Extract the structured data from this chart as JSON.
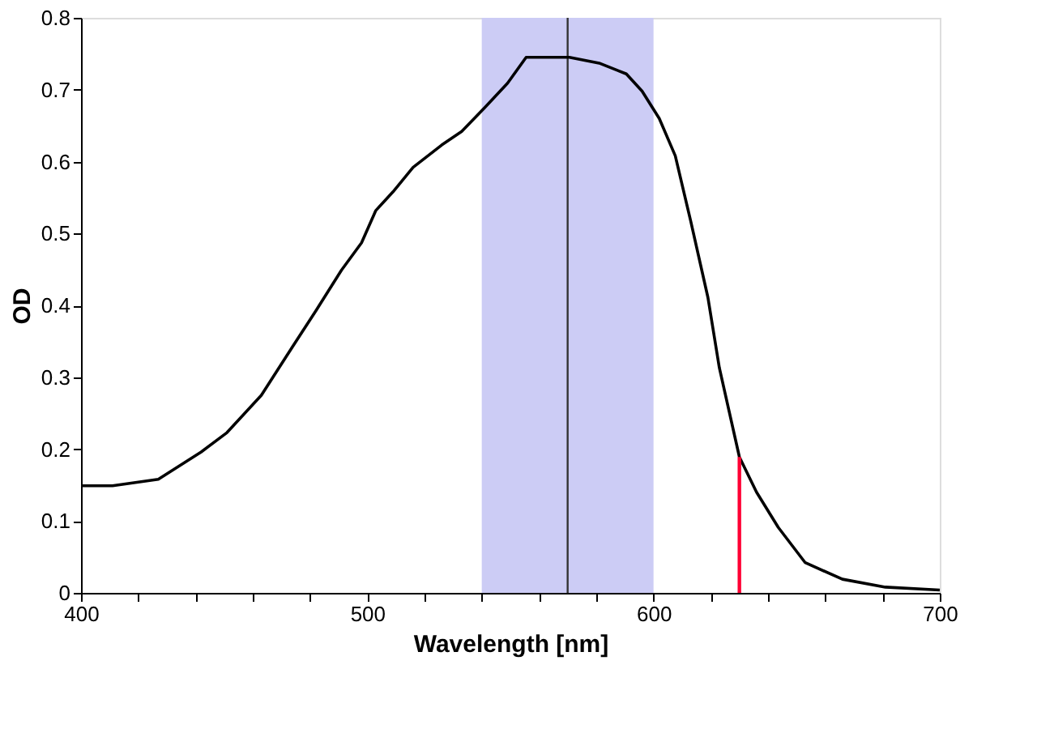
{
  "chart_data": {
    "type": "line",
    "xlabel": "Wavelength [nm]",
    "ylabel": "OD",
    "xlim": [
      400,
      700
    ],
    "ylim": [
      0,
      0.8
    ],
    "xticks": [
      400,
      {
        "value": 420,
        "label": null
      },
      {
        "value": 440,
        "label": null
      },
      {
        "value": 460,
        "label": null
      },
      {
        "value": 480,
        "label": null
      },
      500,
      {
        "value": 520,
        "label": null
      },
      {
        "value": 540,
        "label": null
      },
      {
        "value": 560,
        "label": null
      },
      {
        "value": 580,
        "label": null
      },
      600,
      {
        "value": 620,
        "label": null
      },
      {
        "value": 640,
        "label": null
      },
      {
        "value": 660,
        "label": null
      },
      {
        "value": 680,
        "label": null
      },
      700
    ],
    "yticks": [
      0,
      0.1,
      0.2,
      0.3,
      0.4,
      0.5,
      0.6,
      0.7,
      0.8
    ],
    "grid": false,
    "line_style": "solid",
    "marker": "none",
    "series": [
      {
        "color": "#000000",
        "x": [
          400,
          411,
          427,
          442,
          451,
          463,
          474,
          482,
          491,
          498,
          503,
          509,
          516,
          526,
          533,
          541,
          549,
          555.5,
          570.6,
          581,
          590.5,
          596,
          602,
          607.6,
          613,
          619,
          623,
          630,
          636,
          643.6,
          653,
          666,
          681,
          700
        ],
        "values": [
          0.149,
          0.149,
          0.158,
          0.196,
          0.223,
          0.275,
          0.343,
          0.392,
          0.449,
          0.487,
          0.532,
          0.558,
          0.592,
          0.623,
          0.642,
          0.675,
          0.709,
          0.745,
          0.745,
          0.737,
          0.722,
          0.698,
          0.66,
          0.608,
          0.517,
          0.411,
          0.313,
          0.189,
          0.14,
          0.091,
          0.042,
          0.019,
          0.008,
          0.004
        ]
      },
      {
        "color": "#ff0033",
        "x": [
          630,
          630
        ],
        "values": [
          0,
          0.189
        ]
      }
    ],
    "ref_lines": [
      {
        "axis": "x",
        "value": 570,
        "label": null,
        "color": "#333333"
      }
    ],
    "bands": [
      {
        "axis": "x",
        "from": 540,
        "to": 600,
        "label": null,
        "color": "#ccccf5"
      }
    ]
  }
}
